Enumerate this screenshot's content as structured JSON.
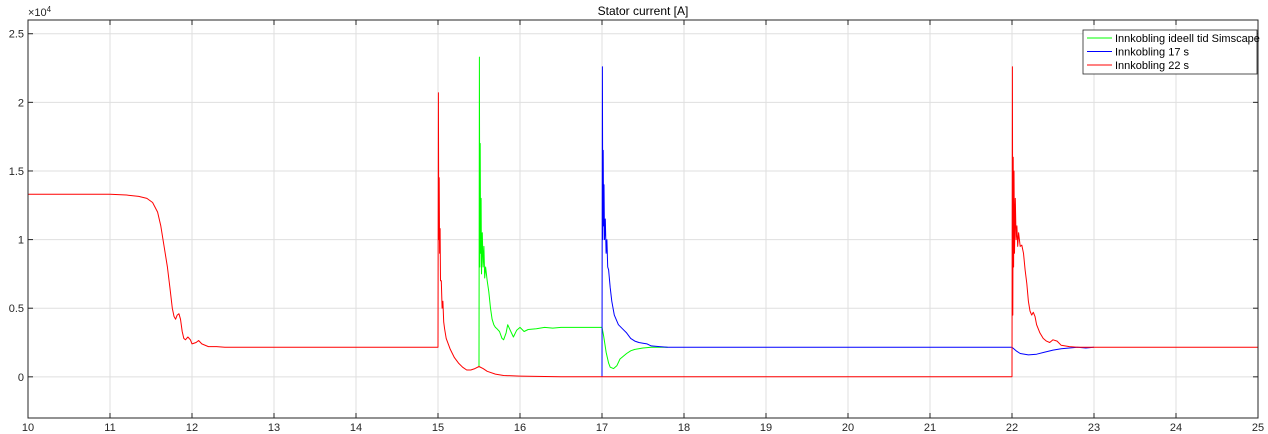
{
  "chart_data": {
    "type": "line",
    "title": "Stator current [A]",
    "xlabel": "",
    "ylabel": "",
    "exponent_label": "×10",
    "exponent_power": "4",
    "xlim": [
      10,
      25
    ],
    "ylim": [
      -0.3,
      2.6
    ],
    "x_ticks": [
      10,
      11,
      12,
      13,
      14,
      15,
      16,
      17,
      18,
      19,
      20,
      21,
      22,
      23,
      24,
      25
    ],
    "x_tick_labels": [
      "10",
      "11",
      "12",
      "13",
      "14",
      "15",
      "16",
      "17",
      "18",
      "19",
      "20",
      "21",
      "22",
      "23",
      "24",
      "25"
    ],
    "y_ticks": [
      0,
      0.5,
      1,
      1.5,
      2,
      2.5
    ],
    "y_tick_labels": [
      "0",
      "0.5",
      "1",
      "1.5",
      "2",
      "2.5"
    ],
    "grid": true,
    "legend_position": "top-right",
    "series": [
      {
        "name": "Innkobling ideell tid Simscape",
        "color": "#00ff00",
        "points": [
          [
            15.5,
            0.07
          ],
          [
            15.505,
            2.33
          ],
          [
            15.51,
            0.8
          ],
          [
            15.515,
            1.7
          ],
          [
            15.52,
            0.9
          ],
          [
            15.525,
            1.3
          ],
          [
            15.53,
            0.75
          ],
          [
            15.54,
            1.05
          ],
          [
            15.55,
            0.8
          ],
          [
            15.56,
            0.95
          ],
          [
            15.57,
            0.72
          ],
          [
            15.58,
            0.8
          ],
          [
            15.6,
            0.7
          ],
          [
            15.62,
            0.62
          ],
          [
            15.64,
            0.5
          ],
          [
            15.66,
            0.42
          ],
          [
            15.68,
            0.38
          ],
          [
            15.7,
            0.36
          ],
          [
            15.72,
            0.35
          ],
          [
            15.75,
            0.33
          ],
          [
            15.78,
            0.28
          ],
          [
            15.8,
            0.27
          ],
          [
            15.83,
            0.32
          ],
          [
            15.85,
            0.38
          ],
          [
            15.88,
            0.34
          ],
          [
            15.92,
            0.29
          ],
          [
            15.96,
            0.34
          ],
          [
            16.0,
            0.36
          ],
          [
            16.05,
            0.33
          ],
          [
            16.1,
            0.345
          ],
          [
            16.2,
            0.35
          ],
          [
            16.3,
            0.36
          ],
          [
            16.4,
            0.355
          ],
          [
            16.5,
            0.36
          ],
          [
            16.6,
            0.36
          ],
          [
            16.8,
            0.36
          ],
          [
            16.99,
            0.36
          ],
          [
            17.0,
            0.36
          ],
          [
            17.02,
            0.3
          ],
          [
            17.05,
            0.18
          ],
          [
            17.08,
            0.1
          ],
          [
            17.1,
            0.07
          ],
          [
            17.14,
            0.06
          ],
          [
            17.18,
            0.08
          ],
          [
            17.22,
            0.13
          ],
          [
            17.26,
            0.15
          ],
          [
            17.3,
            0.17
          ],
          [
            17.35,
            0.19
          ],
          [
            17.4,
            0.2
          ],
          [
            17.5,
            0.21
          ],
          [
            17.6,
            0.215
          ],
          [
            17.8,
            0.215
          ]
        ]
      },
      {
        "name": "Innkobling 17 s",
        "color": "#0000ff",
        "points": [
          [
            17.0,
            0.0
          ],
          [
            17.005,
            2.26
          ],
          [
            17.01,
            1.0
          ],
          [
            17.015,
            1.65
          ],
          [
            17.02,
            1.1
          ],
          [
            17.025,
            1.4
          ],
          [
            17.03,
            1.0
          ],
          [
            17.04,
            1.15
          ],
          [
            17.05,
            0.9
          ],
          [
            17.06,
            1.0
          ],
          [
            17.07,
            0.8
          ],
          [
            17.08,
            0.78
          ],
          [
            17.1,
            0.65
          ],
          [
            17.12,
            0.55
          ],
          [
            17.15,
            0.45
          ],
          [
            17.2,
            0.38
          ],
          [
            17.25,
            0.35
          ],
          [
            17.3,
            0.32
          ],
          [
            17.35,
            0.28
          ],
          [
            17.4,
            0.26
          ],
          [
            17.45,
            0.25
          ],
          [
            17.5,
            0.245
          ],
          [
            17.55,
            0.24
          ],
          [
            17.6,
            0.225
          ],
          [
            17.7,
            0.22
          ],
          [
            17.8,
            0.215
          ],
          [
            18.0,
            0.215
          ],
          [
            19.0,
            0.215
          ],
          [
            20.0,
            0.215
          ],
          [
            21.0,
            0.215
          ],
          [
            22.0,
            0.215
          ],
          [
            22.05,
            0.19
          ],
          [
            22.1,
            0.17
          ],
          [
            22.2,
            0.16
          ],
          [
            22.3,
            0.165
          ],
          [
            22.4,
            0.18
          ],
          [
            22.5,
            0.195
          ],
          [
            22.6,
            0.205
          ],
          [
            22.7,
            0.21
          ],
          [
            22.8,
            0.215
          ],
          [
            22.9,
            0.21
          ],
          [
            23.0,
            0.215
          ]
        ]
      },
      {
        "name": "Innkobling 22 s",
        "color": "#ff0000",
        "points": [
          [
            10.0,
            1.33
          ],
          [
            10.5,
            1.33
          ],
          [
            11.0,
            1.33
          ],
          [
            11.2,
            1.325
          ],
          [
            11.35,
            1.315
          ],
          [
            11.45,
            1.3
          ],
          [
            11.52,
            1.27
          ],
          [
            11.58,
            1.2
          ],
          [
            11.62,
            1.1
          ],
          [
            11.66,
            0.95
          ],
          [
            11.7,
            0.8
          ],
          [
            11.73,
            0.65
          ],
          [
            11.76,
            0.5
          ],
          [
            11.78,
            0.44
          ],
          [
            11.8,
            0.42
          ],
          [
            11.82,
            0.45
          ],
          [
            11.84,
            0.46
          ],
          [
            11.86,
            0.42
          ],
          [
            11.88,
            0.33
          ],
          [
            11.9,
            0.28
          ],
          [
            11.92,
            0.27
          ],
          [
            11.95,
            0.29
          ],
          [
            11.98,
            0.27
          ],
          [
            12.0,
            0.24
          ],
          [
            12.05,
            0.25
          ],
          [
            12.08,
            0.265
          ],
          [
            12.12,
            0.24
          ],
          [
            12.2,
            0.22
          ],
          [
            12.3,
            0.22
          ],
          [
            12.4,
            0.215
          ],
          [
            12.6,
            0.215
          ],
          [
            13.0,
            0.215
          ],
          [
            14.0,
            0.215
          ],
          [
            14.99,
            0.215
          ],
          [
            15.0,
            0.215
          ],
          [
            15.005,
            2.07
          ],
          [
            15.01,
            1.0
          ],
          [
            15.015,
            1.45
          ],
          [
            15.02,
            0.9
          ],
          [
            15.025,
            1.08
          ],
          [
            15.03,
            0.7
          ],
          [
            15.04,
            0.7
          ],
          [
            15.05,
            0.5
          ],
          [
            15.06,
            0.55
          ],
          [
            15.07,
            0.4
          ],
          [
            15.08,
            0.35
          ],
          [
            15.1,
            0.28
          ],
          [
            15.15,
            0.2
          ],
          [
            15.2,
            0.14
          ],
          [
            15.25,
            0.1
          ],
          [
            15.3,
            0.07
          ],
          [
            15.35,
            0.05
          ],
          [
            15.4,
            0.05
          ],
          [
            15.45,
            0.06
          ],
          [
            15.5,
            0.075
          ],
          [
            15.55,
            0.06
          ],
          [
            15.6,
            0.04
          ],
          [
            15.7,
            0.02
          ],
          [
            15.8,
            0.01
          ],
          [
            16.0,
            0.005
          ],
          [
            16.5,
            0.0
          ],
          [
            17.0,
            0.0
          ],
          [
            18.0,
            0.0
          ],
          [
            19.0,
            0.0
          ],
          [
            20.0,
            0.0
          ],
          [
            21.0,
            0.0
          ],
          [
            21.99,
            0.0
          ],
          [
            22.0,
            0.0
          ],
          [
            22.005,
            2.26
          ],
          [
            22.01,
            0.45
          ],
          [
            22.015,
            1.6
          ],
          [
            22.02,
            0.8
          ],
          [
            22.025,
            1.5
          ],
          [
            22.03,
            0.9
          ],
          [
            22.04,
            1.3
          ],
          [
            22.05,
            1.0
          ],
          [
            22.06,
            1.1
          ],
          [
            22.07,
            0.95
          ],
          [
            22.08,
            1.05
          ],
          [
            22.1,
            0.95
          ],
          [
            22.12,
            0.96
          ],
          [
            22.14,
            0.9
          ],
          [
            22.16,
            0.78
          ],
          [
            22.18,
            0.68
          ],
          [
            22.2,
            0.55
          ],
          [
            22.22,
            0.48
          ],
          [
            22.24,
            0.45
          ],
          [
            22.26,
            0.47
          ],
          [
            22.28,
            0.44
          ],
          [
            22.3,
            0.38
          ],
          [
            22.34,
            0.32
          ],
          [
            22.38,
            0.28
          ],
          [
            22.42,
            0.26
          ],
          [
            22.46,
            0.25
          ],
          [
            22.5,
            0.27
          ],
          [
            22.55,
            0.26
          ],
          [
            22.6,
            0.23
          ],
          [
            22.7,
            0.22
          ],
          [
            22.8,
            0.215
          ],
          [
            23.0,
            0.215
          ],
          [
            24.0,
            0.215
          ],
          [
            25.0,
            0.215
          ]
        ]
      }
    ]
  }
}
